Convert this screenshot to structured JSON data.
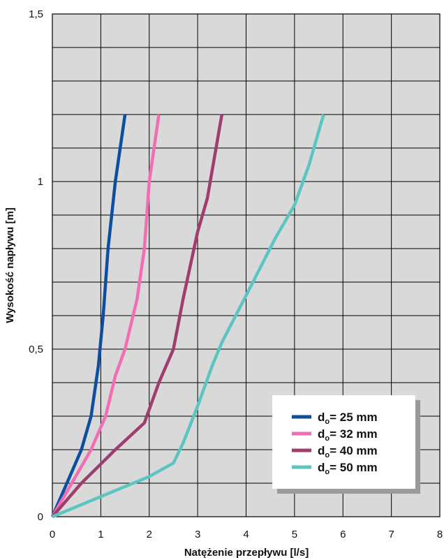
{
  "chart_data": {
    "type": "line",
    "title": "",
    "xlabel": "Natężenie przepływu [l/s]",
    "ylabel": "Wysokość napływu [m]",
    "xlim": [
      0,
      8
    ],
    "ylim": [
      0,
      1.5
    ],
    "x_ticks": [
      "0",
      "1",
      "2",
      "3",
      "4",
      "5",
      "6",
      "7",
      "8"
    ],
    "y_ticks": [
      {
        "value": 0,
        "label": "0"
      },
      {
        "value": 0.5,
        "label": "0,5"
      },
      {
        "value": 1,
        "label": "1"
      },
      {
        "value": 1.5,
        "label": "1,5"
      }
    ],
    "x_grid_step": 1,
    "y_grid_step": 0.1,
    "grid": true,
    "plot_background": "#d9d9d9",
    "legend_position": "bottom-right",
    "series": [
      {
        "name": "dₒ= 25 mm",
        "legend_main": "d",
        "legend_sub": "o",
        "legend_rest": "= 25 mm",
        "color": "#0d4ea0",
        "points": [
          [
            0,
            0
          ],
          [
            0.3,
            0.1
          ],
          [
            0.6,
            0.2
          ],
          [
            0.8,
            0.3
          ],
          [
            0.95,
            0.45
          ],
          [
            1.05,
            0.6
          ],
          [
            1.15,
            0.8
          ],
          [
            1.3,
            1.0
          ],
          [
            1.5,
            1.2
          ]
        ]
      },
      {
        "name": "dₒ= 32 mm",
        "legend_main": "d",
        "legend_sub": "o",
        "legend_rest": "= 32 mm",
        "color": "#f06eb1",
        "points": [
          [
            0,
            0
          ],
          [
            0.4,
            0.1
          ],
          [
            0.8,
            0.2
          ],
          [
            1.1,
            0.3
          ],
          [
            1.3,
            0.42
          ],
          [
            1.5,
            0.5
          ],
          [
            1.75,
            0.65
          ],
          [
            1.9,
            0.8
          ],
          [
            2.0,
            1.0
          ],
          [
            2.2,
            1.2
          ]
        ]
      },
      {
        "name": "dₒ= 40 mm",
        "legend_main": "d",
        "legend_sub": "o",
        "legend_rest": "= 40 mm",
        "color": "#a03c6e",
        "points": [
          [
            0,
            0
          ],
          [
            0.6,
            0.1
          ],
          [
            1.3,
            0.2
          ],
          [
            1.9,
            0.28
          ],
          [
            2.2,
            0.4
          ],
          [
            2.5,
            0.5
          ],
          [
            2.7,
            0.65
          ],
          [
            3.0,
            0.85
          ],
          [
            3.2,
            0.95
          ],
          [
            3.5,
            1.2
          ]
        ]
      },
      {
        "name": "dₒ= 50 mm",
        "legend_main": "d",
        "legend_sub": "o",
        "legend_rest": "= 50 mm",
        "color": "#5cc5c1",
        "points": [
          [
            0,
            0
          ],
          [
            1.0,
            0.06
          ],
          [
            2.0,
            0.12
          ],
          [
            2.5,
            0.16
          ],
          [
            2.7,
            0.22
          ],
          [
            3.0,
            0.33
          ],
          [
            3.3,
            0.45
          ],
          [
            3.5,
            0.52
          ],
          [
            4.0,
            0.66
          ],
          [
            4.6,
            0.83
          ],
          [
            5.0,
            0.93
          ],
          [
            5.3,
            1.05
          ],
          [
            5.6,
            1.2
          ]
        ]
      }
    ]
  }
}
